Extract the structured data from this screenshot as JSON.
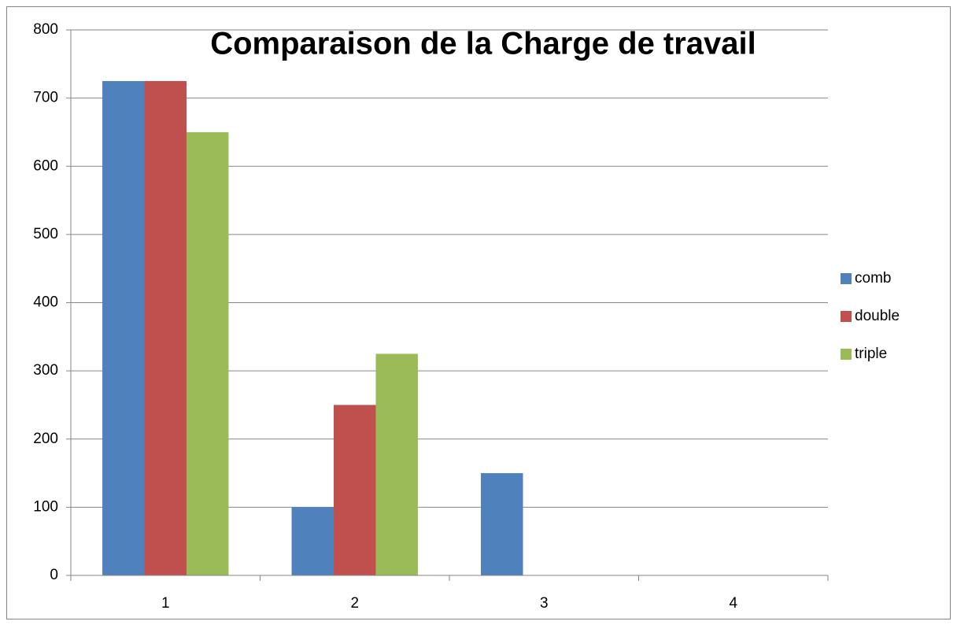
{
  "chart_data": {
    "type": "bar",
    "title": "Comparaison de la Charge de travail",
    "categories": [
      "1",
      "2",
      "3",
      "4"
    ],
    "series": [
      {
        "name": "comb",
        "color": "#4f81bd",
        "values": [
          725,
          100,
          150,
          0
        ]
      },
      {
        "name": "double",
        "color": "#c0504d",
        "values": [
          725,
          250,
          0,
          0
        ]
      },
      {
        "name": "triple",
        "color": "#9bbb59",
        "values": [
          650,
          325,
          0,
          0
        ]
      }
    ],
    "ylim": [
      0,
      800
    ],
    "yticks": [
      0,
      100,
      200,
      300,
      400,
      500,
      600,
      700,
      800
    ],
    "grid": true,
    "legend": "right"
  }
}
